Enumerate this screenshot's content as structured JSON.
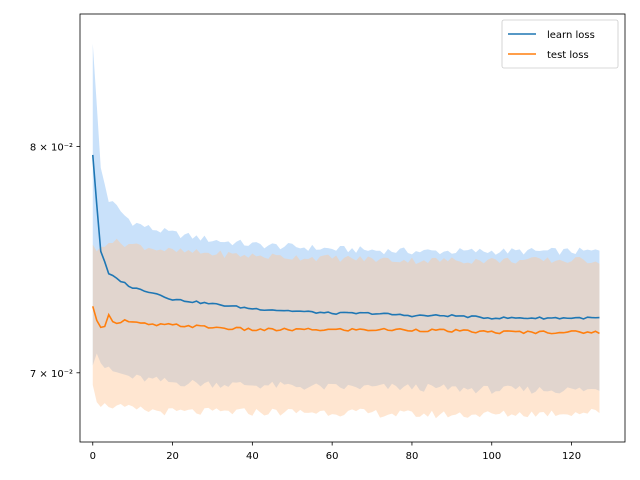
{
  "chart_data": {
    "type": "line",
    "yscale": "log",
    "xlim": [
      -3.2,
      133.4
    ],
    "ylim": [
      0.0672,
      0.0865
    ],
    "xticks": [
      0,
      20,
      40,
      60,
      80,
      100,
      120
    ],
    "xtick_labels": [
      "0",
      "20",
      "40",
      "60",
      "80",
      "100",
      "120"
    ],
    "yticks": [
      0.07,
      0.08
    ],
    "ytick_labels": [
      "7 × 10⁻²",
      "8 × 10⁻²"
    ],
    "legend_position": "top-right",
    "grid": false,
    "x_step": 1,
    "series": [
      {
        "name": "learn loss",
        "color": "#1f77b4",
        "band_color": "#9cc9f5",
        "mean_knots": [
          [
            0,
            0.0796
          ],
          [
            1,
            0.0773
          ],
          [
            2,
            0.0752
          ],
          [
            4,
            0.0742
          ],
          [
            6,
            0.074
          ],
          [
            8,
            0.0738
          ],
          [
            10,
            0.0736
          ],
          [
            15,
            0.0734
          ],
          [
            20,
            0.0731
          ],
          [
            25,
            0.073
          ],
          [
            30,
            0.0729
          ],
          [
            35,
            0.0728
          ],
          [
            40,
            0.0727
          ],
          [
            50,
            0.0726
          ],
          [
            60,
            0.0725
          ],
          [
            70,
            0.0725
          ],
          [
            80,
            0.0724
          ],
          [
            90,
            0.0724
          ],
          [
            100,
            0.0723
          ],
          [
            110,
            0.0723
          ],
          [
            127,
            0.0723
          ]
        ],
        "upper_knots": [
          [
            0,
            0.085
          ],
          [
            1,
            0.082
          ],
          [
            2,
            0.079
          ],
          [
            4,
            0.0775
          ],
          [
            6,
            0.0772
          ],
          [
            8,
            0.0768
          ],
          [
            10,
            0.0765
          ],
          [
            15,
            0.0762
          ],
          [
            20,
            0.076
          ],
          [
            30,
            0.0757
          ],
          [
            40,
            0.0755
          ],
          [
            60,
            0.0753
          ],
          [
            80,
            0.0752
          ],
          [
            100,
            0.0752
          ],
          [
            127,
            0.0752
          ]
        ],
        "lower_knots": [
          [
            0,
            0.0703
          ],
          [
            1,
            0.0708
          ],
          [
            2,
            0.0704
          ],
          [
            4,
            0.0701
          ],
          [
            6,
            0.07
          ],
          [
            10,
            0.0698
          ],
          [
            20,
            0.0696
          ],
          [
            40,
            0.0695
          ],
          [
            60,
            0.0694
          ],
          [
            80,
            0.0694
          ],
          [
            100,
            0.0693
          ],
          [
            127,
            0.0693
          ]
        ]
      },
      {
        "name": "test loss",
        "color": "#ff7f0e",
        "band_color": "#ffc79a",
        "mean_knots": [
          [
            0,
            0.0728
          ],
          [
            1,
            0.0722
          ],
          [
            2,
            0.0719
          ],
          [
            3,
            0.072
          ],
          [
            4,
            0.0724
          ],
          [
            5,
            0.0722
          ],
          [
            6,
            0.0721
          ],
          [
            8,
            0.0722
          ],
          [
            10,
            0.0721
          ],
          [
            15,
            0.072
          ],
          [
            20,
            0.072
          ],
          [
            30,
            0.0719
          ],
          [
            40,
            0.0718
          ],
          [
            60,
            0.0718
          ],
          [
            80,
            0.0718
          ],
          [
            100,
            0.0717
          ],
          [
            127,
            0.0717
          ]
        ],
        "upper_knots": [
          [
            0,
            0.0755
          ],
          [
            1,
            0.0752
          ],
          [
            2,
            0.0754
          ],
          [
            4,
            0.0757
          ],
          [
            6,
            0.0756
          ],
          [
            10,
            0.0755
          ],
          [
            20,
            0.0752
          ],
          [
            40,
            0.075
          ],
          [
            60,
            0.0749
          ],
          [
            80,
            0.0748
          ],
          [
            100,
            0.0748
          ],
          [
            127,
            0.0748
          ]
        ],
        "lower_knots": [
          [
            0,
            0.0695
          ],
          [
            1,
            0.0688
          ],
          [
            2,
            0.0686
          ],
          [
            4,
            0.0687
          ],
          [
            6,
            0.0686
          ],
          [
            10,
            0.0685
          ],
          [
            20,
            0.0684
          ],
          [
            40,
            0.0684
          ],
          [
            60,
            0.0684
          ],
          [
            80,
            0.0683
          ],
          [
            100,
            0.0683
          ],
          [
            127,
            0.0684
          ]
        ]
      }
    ]
  },
  "legend": {
    "items": [
      {
        "label": "learn loss",
        "color": "#1f77b4"
      },
      {
        "label": "test loss",
        "color": "#ff7f0e"
      }
    ]
  }
}
